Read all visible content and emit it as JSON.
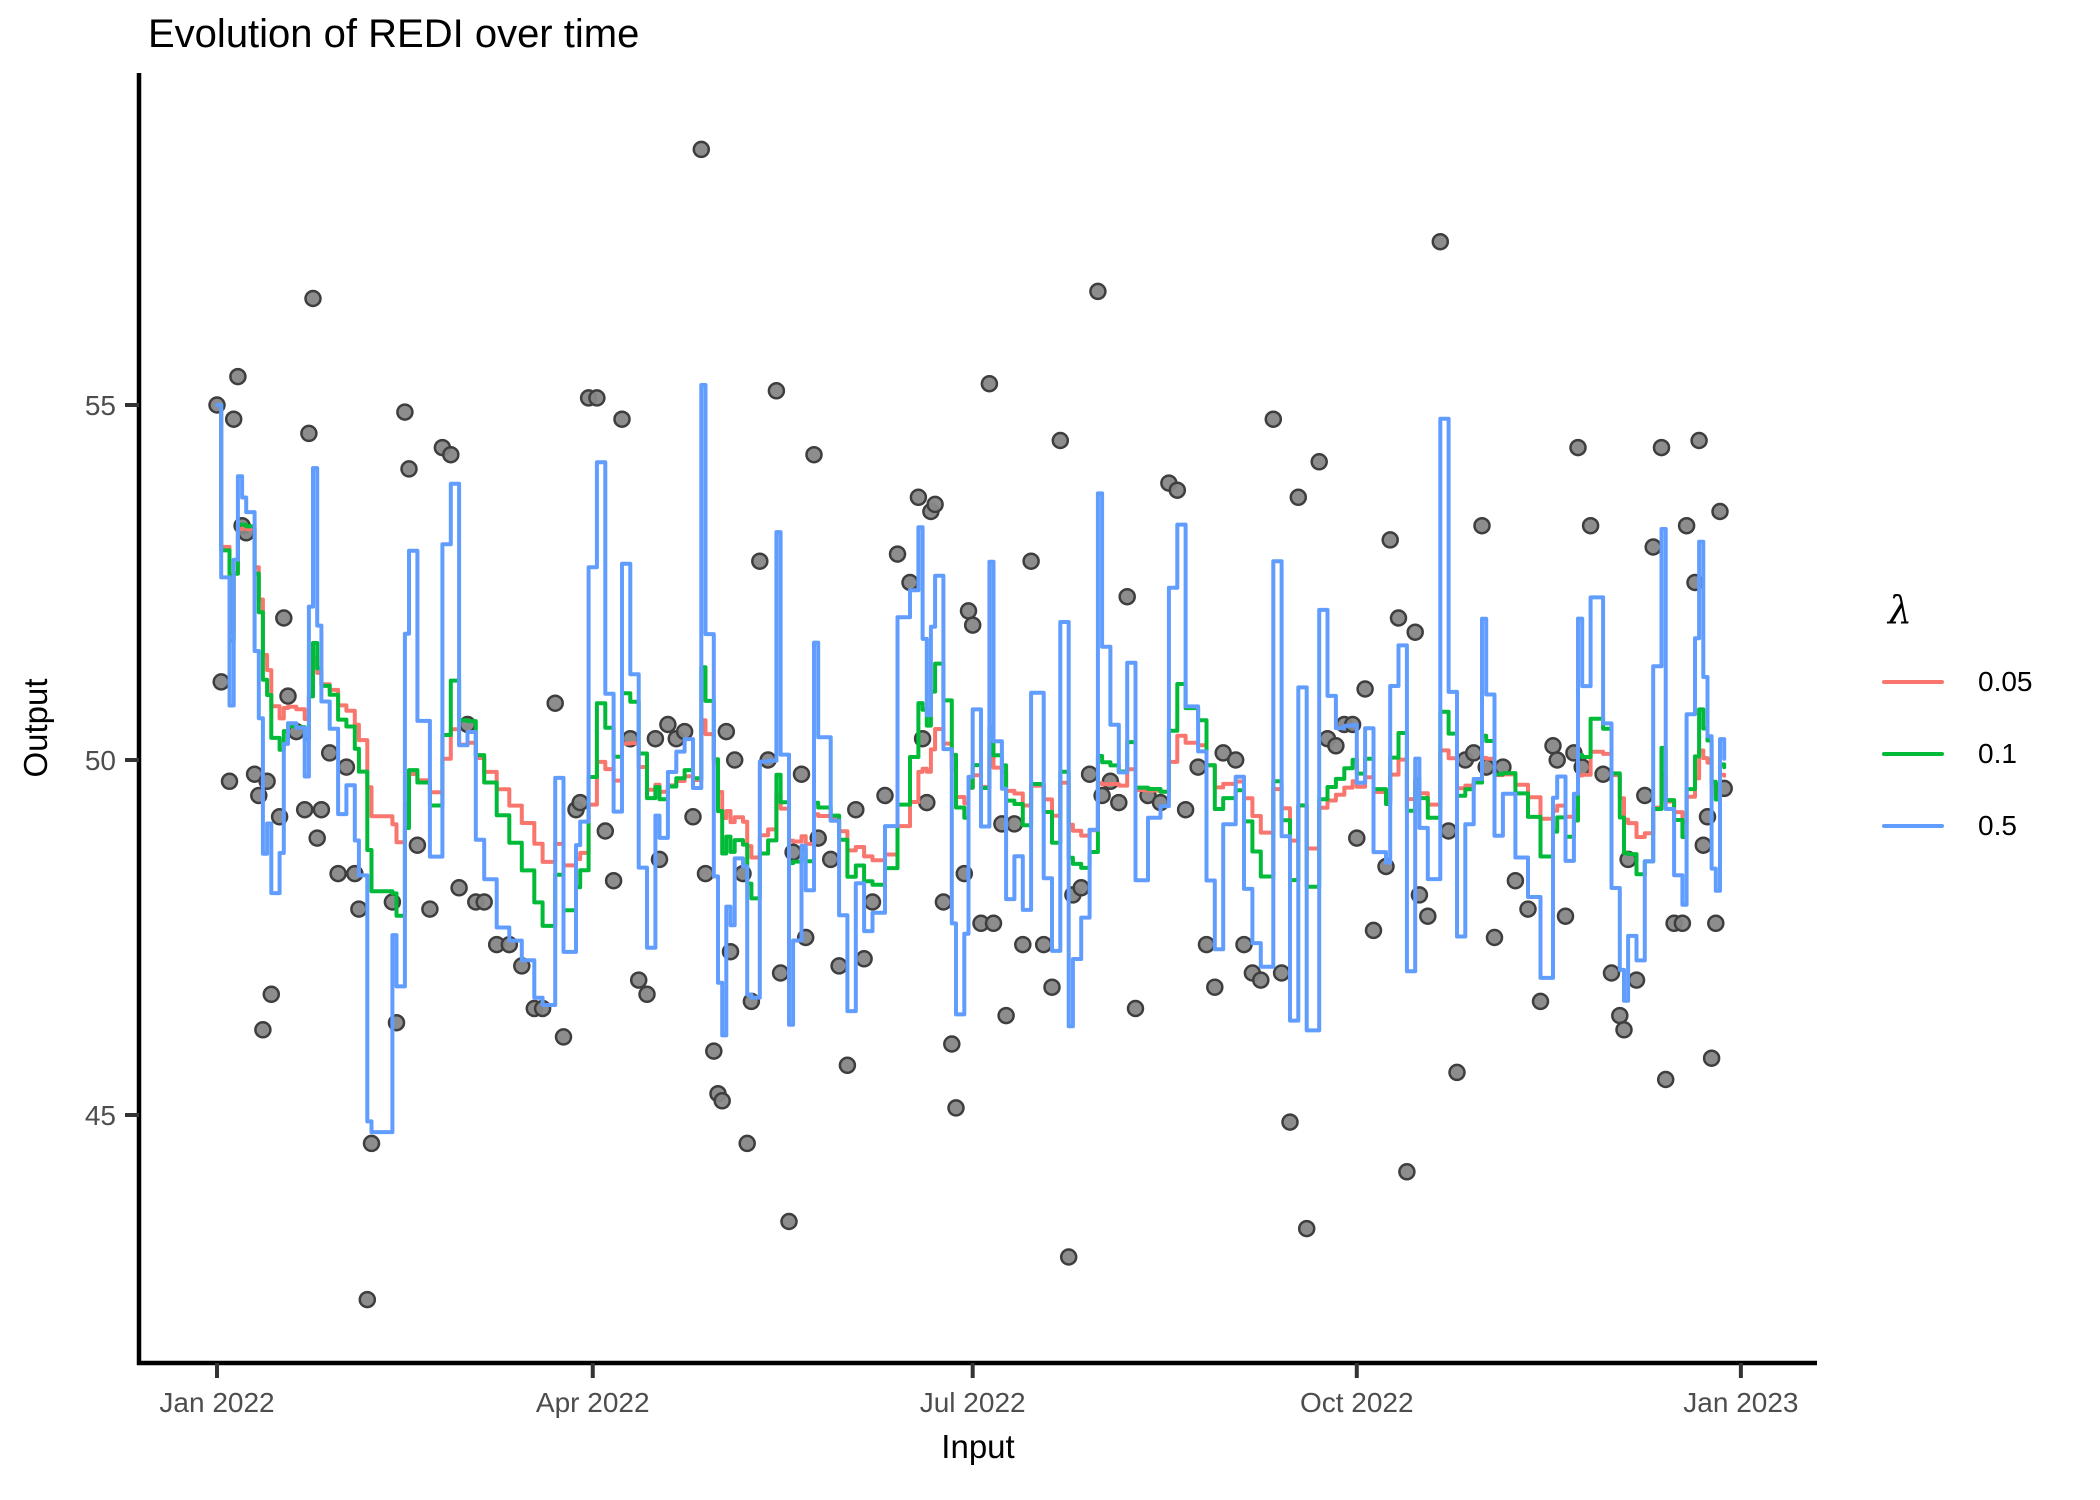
{
  "title": "Evolution of REDI over time",
  "x_axis": {
    "label": "Input"
  },
  "y_axis": {
    "label": "Output"
  },
  "legend": {
    "title": "λ",
    "entries": [
      {
        "label": "0.05",
        "color": "#F8766D",
        "lambda": 0.05
      },
      {
        "label": "0.1",
        "color": "#00BA38",
        "lambda": 0.1
      },
      {
        "label": "0.5",
        "color": "#619CFF",
        "lambda": 0.5
      }
    ]
  },
  "chart_data": {
    "type": "scatter",
    "title": "Evolution of REDI over time",
    "xlabel": "Input",
    "ylabel": "Output",
    "x_ticks": [
      {
        "label": "Jan 2022",
        "date": "2022-01-01"
      },
      {
        "label": "Apr 2022",
        "date": "2022-04-01"
      },
      {
        "label": "Jul 2022",
        "date": "2022-07-01"
      },
      {
        "label": "Oct 2022",
        "date": "2022-10-01"
      },
      {
        "label": "Jan 2023",
        "date": "2023-01-01"
      }
    ],
    "y_ticks": [
      55,
      50,
      45
    ],
    "ylim": [
      41.5,
      59.6
    ],
    "grid": "off",
    "legend_position": "right",
    "point_style": {
      "fill": "#878787",
      "stroke": "#3e3e3e",
      "radius": 7.5
    },
    "series": [
      {
        "name": "0.05",
        "lambda": 0.05,
        "color": "#F8766D"
      },
      {
        "name": "0.1",
        "lambda": 0.1,
        "color": "#00BA38"
      },
      {
        "name": "0.5",
        "lambda": 0.5,
        "color": "#619CFF"
      }
    ],
    "series_rule": "REDI exponentially-decayed weighted mean of points, weight exp(-lambda*age_days), stepped daily",
    "points": [
      [
        "2022-01-01",
        55.0
      ],
      [
        "2022-01-02",
        51.1
      ],
      [
        "2022-01-04",
        49.7
      ],
      [
        "2022-01-05",
        54.8
      ],
      [
        "2022-01-06",
        55.4
      ],
      [
        "2022-01-07",
        53.3
      ],
      [
        "2022-01-08",
        53.2
      ],
      [
        "2022-01-10",
        49.8
      ],
      [
        "2022-01-11",
        49.5
      ],
      [
        "2022-01-12",
        46.2
      ],
      [
        "2022-01-13",
        49.7
      ],
      [
        "2022-01-14",
        46.7
      ],
      [
        "2022-01-16",
        49.2
      ],
      [
        "2022-01-17",
        52.0
      ],
      [
        "2022-01-18",
        50.9
      ],
      [
        "2022-01-20",
        50.4
      ],
      [
        "2022-01-22",
        49.3
      ],
      [
        "2022-01-23",
        54.6
      ],
      [
        "2022-01-24",
        56.5
      ],
      [
        "2022-01-25",
        48.9
      ],
      [
        "2022-01-26",
        49.3
      ],
      [
        "2022-01-28",
        50.1
      ],
      [
        "2022-01-30",
        48.4
      ],
      [
        "2022-02-01",
        49.9
      ],
      [
        "2022-02-03",
        48.4
      ],
      [
        "2022-02-04",
        47.9
      ],
      [
        "2022-02-06",
        42.4
      ],
      [
        "2022-02-07",
        44.6
      ],
      [
        "2022-02-12",
        48.0
      ],
      [
        "2022-02-13",
        46.3
      ],
      [
        "2022-02-15",
        54.9
      ],
      [
        "2022-02-16",
        54.1
      ],
      [
        "2022-02-18",
        48.8
      ],
      [
        "2022-02-21",
        47.9
      ],
      [
        "2022-02-24",
        54.4
      ],
      [
        "2022-02-26",
        54.3
      ],
      [
        "2022-02-28",
        48.2
      ],
      [
        "2022-03-02",
        50.5
      ],
      [
        "2022-03-04",
        48.0
      ],
      [
        "2022-03-06",
        48.0
      ],
      [
        "2022-03-09",
        47.4
      ],
      [
        "2022-03-12",
        47.4
      ],
      [
        "2022-03-15",
        47.1
      ],
      [
        "2022-03-18",
        46.5
      ],
      [
        "2022-03-20",
        46.5
      ],
      [
        "2022-03-23",
        50.8
      ],
      [
        "2022-03-25",
        46.1
      ],
      [
        "2022-03-28",
        49.3
      ],
      [
        "2022-03-29",
        49.4
      ],
      [
        "2022-03-31",
        55.1
      ],
      [
        "2022-04-02",
        55.1
      ],
      [
        "2022-04-04",
        49.0
      ],
      [
        "2022-04-06",
        48.3
      ],
      [
        "2022-04-08",
        54.8
      ],
      [
        "2022-04-10",
        50.3
      ],
      [
        "2022-04-12",
        46.9
      ],
      [
        "2022-04-14",
        46.7
      ],
      [
        "2022-04-16",
        50.3
      ],
      [
        "2022-04-17",
        48.6
      ],
      [
        "2022-04-19",
        50.5
      ],
      [
        "2022-04-21",
        50.3
      ],
      [
        "2022-04-23",
        50.4
      ],
      [
        "2022-04-25",
        49.2
      ],
      [
        "2022-04-27",
        58.6
      ],
      [
        "2022-04-28",
        48.4
      ],
      [
        "2022-04-30",
        45.9
      ],
      [
        "2022-05-01",
        45.3
      ],
      [
        "2022-05-02",
        45.2
      ],
      [
        "2022-05-03",
        50.4
      ],
      [
        "2022-05-04",
        47.3
      ],
      [
        "2022-05-05",
        50.0
      ],
      [
        "2022-05-07",
        48.4
      ],
      [
        "2022-05-08",
        44.6
      ],
      [
        "2022-05-09",
        46.6
      ],
      [
        "2022-05-11",
        52.8
      ],
      [
        "2022-05-13",
        50.0
      ],
      [
        "2022-05-15",
        55.2
      ],
      [
        "2022-05-16",
        47.0
      ],
      [
        "2022-05-18",
        43.5
      ],
      [
        "2022-05-19",
        48.7
      ],
      [
        "2022-05-21",
        49.8
      ],
      [
        "2022-05-22",
        47.5
      ],
      [
        "2022-05-24",
        54.3
      ],
      [
        "2022-05-25",
        48.9
      ],
      [
        "2022-05-28",
        48.6
      ],
      [
        "2022-05-30",
        47.1
      ],
      [
        "2022-06-01",
        45.7
      ],
      [
        "2022-06-03",
        49.3
      ],
      [
        "2022-06-05",
        47.2
      ],
      [
        "2022-06-07",
        48.0
      ],
      [
        "2022-06-10",
        49.5
      ],
      [
        "2022-06-13",
        52.9
      ],
      [
        "2022-06-16",
        52.5
      ],
      [
        "2022-06-18",
        53.7
      ],
      [
        "2022-06-19",
        50.3
      ],
      [
        "2022-06-20",
        49.4
      ],
      [
        "2022-06-21",
        53.5
      ],
      [
        "2022-06-22",
        53.6
      ],
      [
        "2022-06-24",
        48.0
      ],
      [
        "2022-06-26",
        46.0
      ],
      [
        "2022-06-27",
        45.1
      ],
      [
        "2022-06-29",
        48.4
      ],
      [
        "2022-06-30",
        52.1
      ],
      [
        "2022-07-01",
        51.9
      ],
      [
        "2022-07-03",
        47.7
      ],
      [
        "2022-07-05",
        55.3
      ],
      [
        "2022-07-06",
        47.7
      ],
      [
        "2022-07-08",
        49.1
      ],
      [
        "2022-07-09",
        46.4
      ],
      [
        "2022-07-11",
        49.1
      ],
      [
        "2022-07-13",
        47.4
      ],
      [
        "2022-07-15",
        52.8
      ],
      [
        "2022-07-18",
        47.4
      ],
      [
        "2022-07-20",
        46.8
      ],
      [
        "2022-07-22",
        54.5
      ],
      [
        "2022-07-24",
        43.0
      ],
      [
        "2022-07-25",
        48.1
      ],
      [
        "2022-07-27",
        48.2
      ],
      [
        "2022-07-29",
        49.8
      ],
      [
        "2022-07-31",
        56.6
      ],
      [
        "2022-08-01",
        49.5
      ],
      [
        "2022-08-03",
        49.7
      ],
      [
        "2022-08-05",
        49.4
      ],
      [
        "2022-08-07",
        52.3
      ],
      [
        "2022-08-09",
        46.5
      ],
      [
        "2022-08-12",
        49.5
      ],
      [
        "2022-08-15",
        49.4
      ],
      [
        "2022-08-17",
        53.9
      ],
      [
        "2022-08-19",
        53.8
      ],
      [
        "2022-08-21",
        49.3
      ],
      [
        "2022-08-24",
        49.9
      ],
      [
        "2022-08-26",
        47.4
      ],
      [
        "2022-08-28",
        46.8
      ],
      [
        "2022-08-30",
        50.1
      ],
      [
        "2022-09-02",
        50.0
      ],
      [
        "2022-09-04",
        47.4
      ],
      [
        "2022-09-06",
        47.0
      ],
      [
        "2022-09-08",
        46.9
      ],
      [
        "2022-09-11",
        54.8
      ],
      [
        "2022-09-13",
        47.0
      ],
      [
        "2022-09-15",
        44.9
      ],
      [
        "2022-09-17",
        53.7
      ],
      [
        "2022-09-19",
        43.4
      ],
      [
        "2022-09-22",
        54.2
      ],
      [
        "2022-09-24",
        50.3
      ],
      [
        "2022-09-26",
        50.2
      ],
      [
        "2022-09-28",
        50.5
      ],
      [
        "2022-09-30",
        50.5
      ],
      [
        "2022-10-01",
        48.9
      ],
      [
        "2022-10-03",
        51.0
      ],
      [
        "2022-10-05",
        47.6
      ],
      [
        "2022-10-08",
        48.5
      ],
      [
        "2022-10-09",
        53.1
      ],
      [
        "2022-10-11",
        52.0
      ],
      [
        "2022-10-13",
        44.2
      ],
      [
        "2022-10-15",
        51.8
      ],
      [
        "2022-10-16",
        48.1
      ],
      [
        "2022-10-18",
        47.8
      ],
      [
        "2022-10-21",
        57.3
      ],
      [
        "2022-10-23",
        49.0
      ],
      [
        "2022-10-25",
        45.6
      ],
      [
        "2022-10-27",
        50.0
      ],
      [
        "2022-10-29",
        50.1
      ],
      [
        "2022-10-31",
        53.3
      ],
      [
        "2022-11-01",
        49.9
      ],
      [
        "2022-11-03",
        47.5
      ],
      [
        "2022-11-05",
        49.9
      ],
      [
        "2022-11-08",
        48.3
      ],
      [
        "2022-11-11",
        47.9
      ],
      [
        "2022-11-14",
        46.6
      ],
      [
        "2022-11-17",
        50.2
      ],
      [
        "2022-11-18",
        50.0
      ],
      [
        "2022-11-20",
        47.8
      ],
      [
        "2022-11-22",
        50.1
      ],
      [
        "2022-11-23",
        54.4
      ],
      [
        "2022-11-24",
        49.9
      ],
      [
        "2022-11-26",
        53.3
      ],
      [
        "2022-11-29",
        49.8
      ],
      [
        "2022-12-01",
        47.0
      ],
      [
        "2022-12-03",
        46.4
      ],
      [
        "2022-12-04",
        46.2
      ],
      [
        "2022-12-05",
        48.6
      ],
      [
        "2022-12-07",
        46.9
      ],
      [
        "2022-12-09",
        49.5
      ],
      [
        "2022-12-11",
        53.0
      ],
      [
        "2022-12-13",
        54.4
      ],
      [
        "2022-12-14",
        45.5
      ],
      [
        "2022-12-16",
        47.7
      ],
      [
        "2022-12-18",
        47.7
      ],
      [
        "2022-12-19",
        53.3
      ],
      [
        "2022-12-21",
        52.5
      ],
      [
        "2022-12-22",
        54.5
      ],
      [
        "2022-12-23",
        48.8
      ],
      [
        "2022-12-24",
        49.2
      ],
      [
        "2022-12-25",
        45.8
      ],
      [
        "2022-12-26",
        47.7
      ],
      [
        "2022-12-27",
        53.5
      ],
      [
        "2022-12-28",
        49.6
      ]
    ]
  }
}
